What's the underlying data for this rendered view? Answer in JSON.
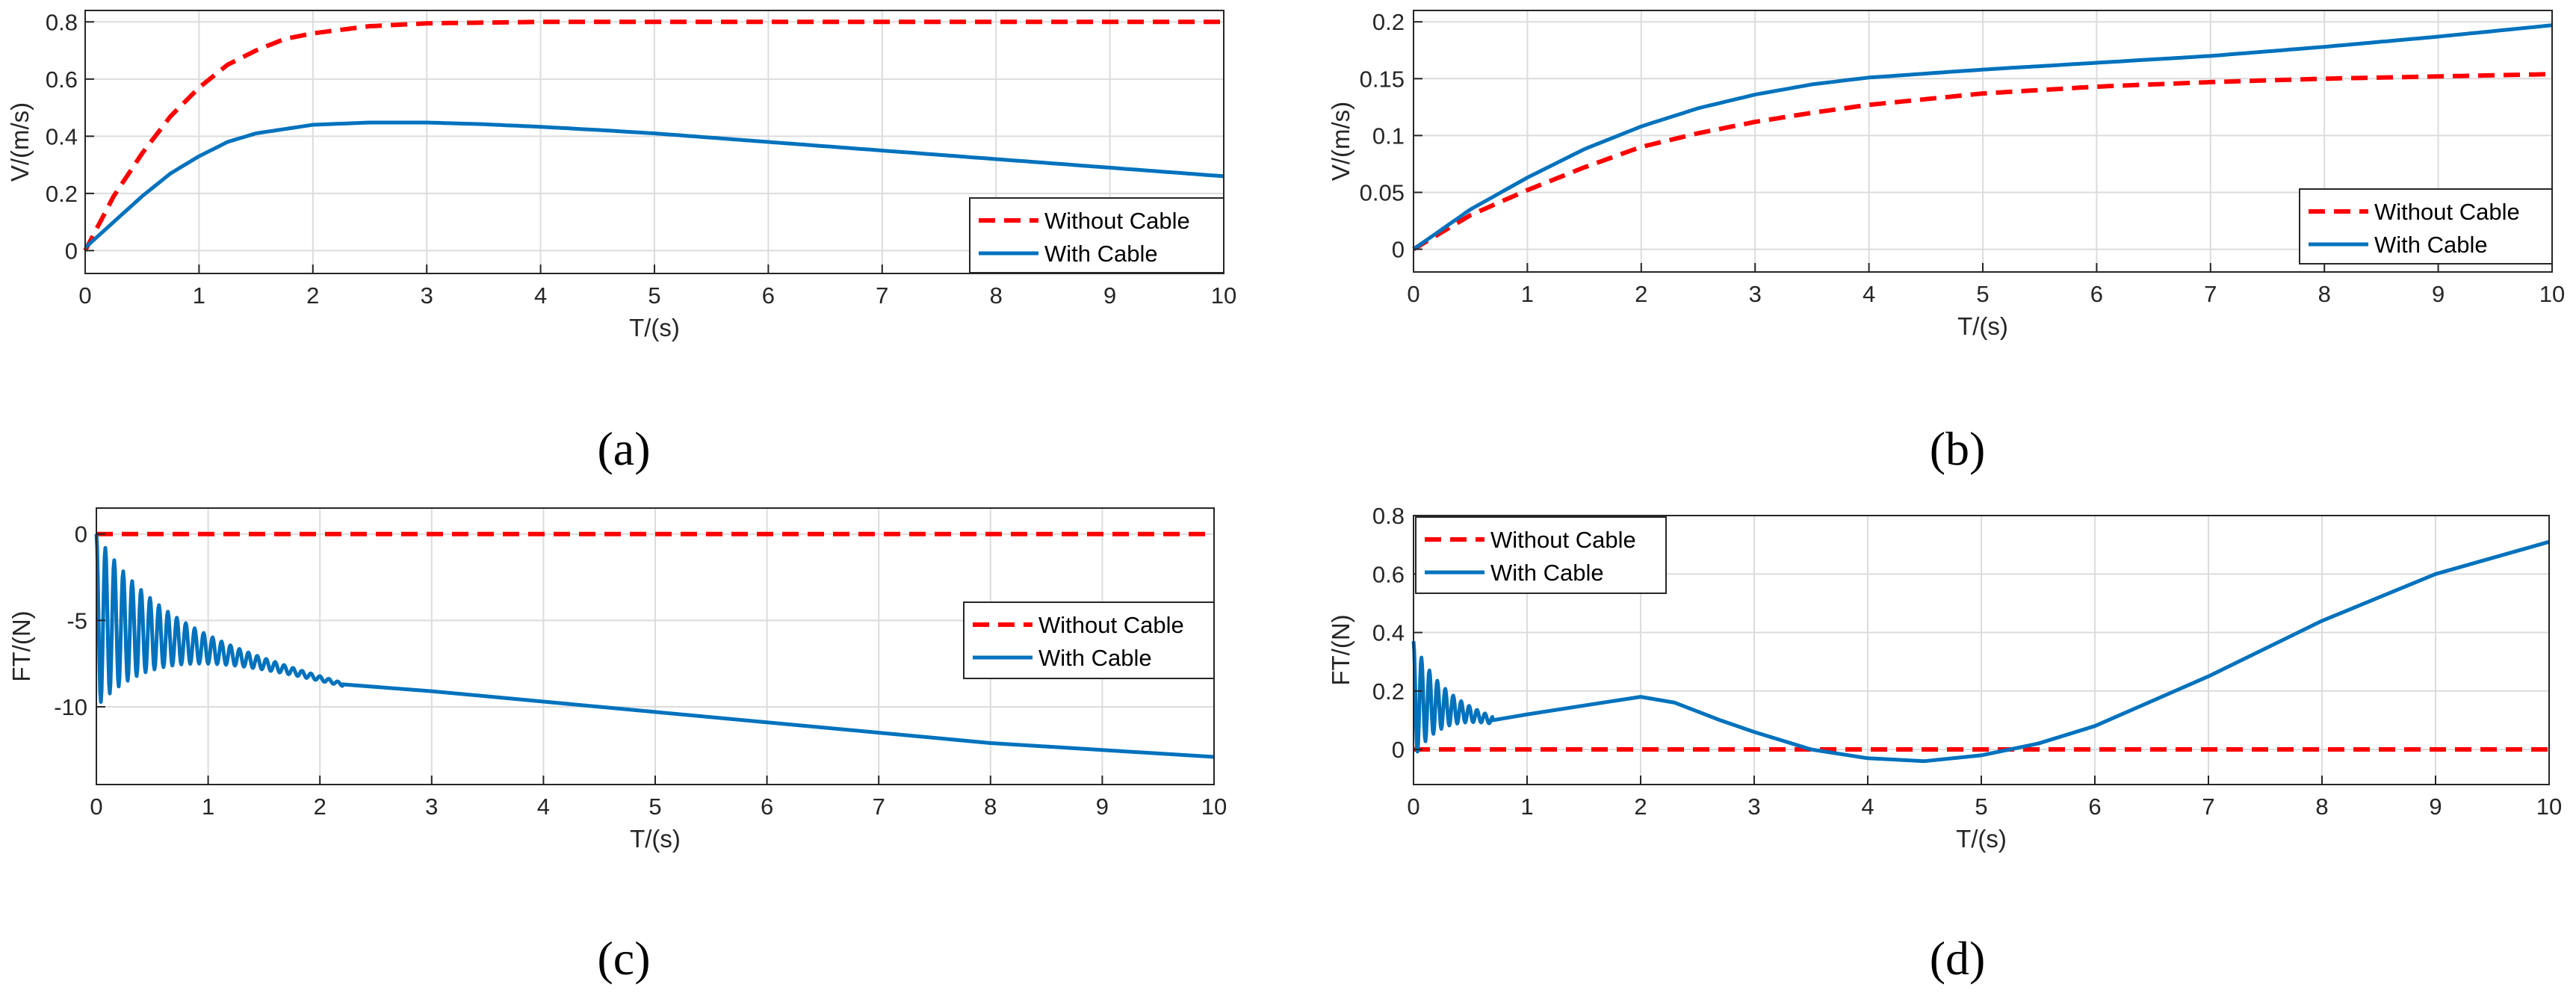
{
  "colors": {
    "without_cable": "#ff0000",
    "with_cable": "#0072bd"
  },
  "chart_data": [
    {
      "id": "a",
      "caption": "(a)",
      "type": "line",
      "xlabel": "T/(s)",
      "ylabel": "V/(m/s)",
      "xlim": [
        0,
        10
      ],
      "ylim": [
        -0.08,
        0.84
      ],
      "xticks": [
        0,
        1,
        2,
        3,
        4,
        5,
        6,
        7,
        8,
        9,
        10
      ],
      "xticklabels": [
        "0",
        "1",
        "2",
        "3",
        "4",
        "5",
        "6",
        "7",
        "8",
        "9",
        "10"
      ],
      "yticks": [
        0,
        0.2,
        0.4,
        0.6,
        0.8
      ],
      "yticklabels": [
        "0",
        "0.2",
        "0.4",
        "0.6",
        "0.8"
      ],
      "grid": true,
      "legend_position": "lower-right",
      "series": [
        {
          "name": "Without Cable",
          "style": "dashed",
          "x": [
            0,
            0.25,
            0.5,
            0.75,
            1,
            1.25,
            1.5,
            1.75,
            2,
            2.5,
            3,
            4,
            5,
            6,
            7,
            8,
            9,
            10
          ],
          "y": [
            0,
            0.19,
            0.34,
            0.47,
            0.57,
            0.65,
            0.7,
            0.74,
            0.76,
            0.785,
            0.795,
            0.8,
            0.8,
            0.8,
            0.8,
            0.8,
            0.8,
            0.8
          ]
        },
        {
          "name": "With Cable",
          "style": "solid",
          "x": [
            0,
            0.25,
            0.5,
            0.75,
            1,
            1.25,
            1.5,
            2,
            2.5,
            3,
            3.5,
            4,
            4.5,
            5,
            6,
            7,
            8,
            9,
            10
          ],
          "y": [
            0.01,
            0.1,
            0.19,
            0.27,
            0.33,
            0.38,
            0.41,
            0.44,
            0.448,
            0.448,
            0.442,
            0.433,
            0.422,
            0.41,
            0.38,
            0.35,
            0.32,
            0.29,
            0.26
          ]
        }
      ]
    },
    {
      "id": "b",
      "caption": "(b)",
      "type": "line",
      "xlabel": "T/(s)",
      "ylabel": "V/(m/s)",
      "xlim": [
        0,
        10
      ],
      "ylim": [
        -0.02,
        0.21
      ],
      "xticks": [
        0,
        1,
        2,
        3,
        4,
        5,
        6,
        7,
        8,
        9,
        10
      ],
      "xticklabels": [
        "0",
        "1",
        "2",
        "3",
        "4",
        "5",
        "6",
        "7",
        "8",
        "9",
        "10"
      ],
      "yticks": [
        0,
        0.05,
        0.1,
        0.15,
        0.2
      ],
      "yticklabels": [
        "0",
        "0.05",
        "0.1",
        "0.15",
        "0.2"
      ],
      "grid": true,
      "legend_position": "lower-right",
      "series": [
        {
          "name": "Without Cable",
          "style": "dashed",
          "x": [
            0,
            0.5,
            1,
            1.5,
            2,
            2.5,
            3,
            3.5,
            4,
            5,
            6,
            7,
            8,
            9,
            10
          ],
          "y": [
            0,
            0.03,
            0.052,
            0.072,
            0.09,
            0.102,
            0.112,
            0.12,
            0.127,
            0.137,
            0.143,
            0.147,
            0.15,
            0.152,
            0.154
          ]
        },
        {
          "name": "With Cable",
          "style": "solid",
          "x": [
            0,
            0.5,
            1,
            1.5,
            2,
            2.5,
            3,
            3.5,
            4,
            5,
            6,
            7,
            8,
            9,
            10
          ],
          "y": [
            0,
            0.035,
            0.063,
            0.088,
            0.108,
            0.124,
            0.136,
            0.145,
            0.151,
            0.158,
            0.164,
            0.17,
            0.178,
            0.187,
            0.197
          ]
        }
      ]
    },
    {
      "id": "c",
      "caption": "(c)",
      "type": "line",
      "xlabel": "T/(s)",
      "ylabel": "FT/(N)",
      "xlim": [
        0,
        10
      ],
      "ylim": [
        -14.5,
        1.5
      ],
      "xticks": [
        0,
        1,
        2,
        3,
        4,
        5,
        6,
        7,
        8,
        9,
        10
      ],
      "xticklabels": [
        "0",
        "1",
        "2",
        "3",
        "4",
        "5",
        "6",
        "7",
        "8",
        "9",
        "10"
      ],
      "yticks": [
        -10,
        -5,
        0
      ],
      "yticklabels": [
        "-10",
        "-5",
        "0"
      ],
      "grid": true,
      "legend_position": "right",
      "series": [
        {
          "name": "Without Cable",
          "style": "dashed",
          "x": [
            0,
            10
          ],
          "y": [
            0,
            0
          ]
        },
        {
          "name": "With Cable",
          "style": "solid",
          "oscillation": {
            "until": 2.2,
            "period": 0.08,
            "center_start": -5,
            "center_end": -8.7,
            "amp_start": 5,
            "decay": 1.8
          },
          "x": [
            0,
            2.2,
            3,
            4,
            5,
            6,
            7,
            8,
            9,
            10
          ],
          "y": [
            -5,
            -8.7,
            -9.1,
            -9.7,
            -10.3,
            -10.9,
            -11.5,
            -12.1,
            -12.5,
            -12.9
          ]
        }
      ]
    },
    {
      "id": "d",
      "caption": "(d)",
      "type": "line",
      "xlabel": "T/(s)",
      "ylabel": "FT/(N)",
      "xlim": [
        0,
        10
      ],
      "ylim": [
        -0.12,
        0.8
      ],
      "xticks": [
        0,
        1,
        2,
        3,
        4,
        5,
        6,
        7,
        8,
        9,
        10
      ],
      "xticklabels": [
        "0",
        "1",
        "2",
        "3",
        "4",
        "5",
        "6",
        "7",
        "8",
        "9",
        "10"
      ],
      "yticks": [
        0,
        0.2,
        0.4,
        0.6,
        0.8
      ],
      "yticklabels": [
        "0",
        "0.2",
        "0.4",
        "0.6",
        "0.8"
      ],
      "grid": true,
      "legend_position": "top-left",
      "series": [
        {
          "name": "Without Cable",
          "style": "dashed",
          "x": [
            0,
            10
          ],
          "y": [
            0,
            0
          ]
        },
        {
          "name": "With Cable",
          "style": "solid",
          "oscillation": {
            "until": 0.7,
            "period": 0.07,
            "center_start": 0.17,
            "center_end": 0.1,
            "amp_start": 0.2,
            "decay": 4
          },
          "x": [
            0,
            0.7,
            1,
            1.5,
            2,
            2.3,
            2.7,
            3,
            3.5,
            4,
            4.5,
            5,
            5.5,
            6,
            7,
            8,
            9,
            10
          ],
          "y": [
            0.17,
            0.1,
            0.12,
            0.15,
            0.18,
            0.16,
            0.1,
            0.06,
            0.0,
            -0.03,
            -0.04,
            -0.02,
            0.02,
            0.08,
            0.25,
            0.44,
            0.6,
            0.71
          ]
        }
      ]
    }
  ]
}
